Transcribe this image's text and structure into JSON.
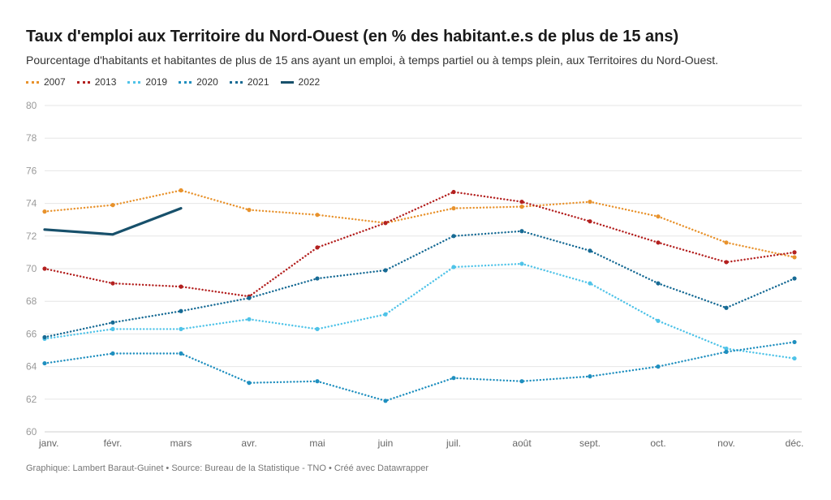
{
  "header": {
    "title": "Taux d'emploi aux Territoire du Nord-Ouest (en % des habitant.e.s de plus de 15 ans)",
    "subtitle": "Pourcentage d'habitants et habitantes de plus de 15 ans ayant un emploi, à temps partiel ou à temps plein, aux Territoires du Nord-Ouest."
  },
  "footer": {
    "credit": "Graphique: Lambert Baraut-Guinet • Source: Bureau de la Statistique - TNO • Créé avec Datawrapper"
  },
  "chart_data": {
    "type": "line",
    "title": "Taux d'emploi aux Territoire du Nord-Ouest (en % des habitant.e.s de plus de 15 ans)",
    "subtitle": "Pourcentage d'habitants et habitantes de plus de 15 ans ayant un emploi, à temps partiel ou à temps plein, aux Territoires du Nord-Ouest.",
    "xlabel": "",
    "ylabel": "",
    "categories": [
      "janv.",
      "févr.",
      "mars",
      "avr.",
      "mai",
      "juin",
      "juil.",
      "août",
      "sept.",
      "oct.",
      "nov.",
      "déc."
    ],
    "ylim": [
      60,
      80
    ],
    "yticks": [
      60,
      62,
      64,
      66,
      68,
      70,
      72,
      74,
      76,
      78,
      80
    ],
    "grid": true,
    "legend_position": "top-left",
    "series": [
      {
        "name": "2007",
        "color": "#e8922c",
        "style": "dotted",
        "values": [
          73.5,
          73.9,
          74.8,
          73.6,
          73.3,
          72.8,
          73.7,
          73.8,
          74.1,
          73.2,
          71.6,
          70.7
        ]
      },
      {
        "name": "2013",
        "color": "#b3201f",
        "style": "dotted",
        "values": [
          70.0,
          69.1,
          68.9,
          68.3,
          71.3,
          72.8,
          74.7,
          74.1,
          72.9,
          71.6,
          70.4,
          71.0
        ]
      },
      {
        "name": "2019",
        "color": "#4fc3e8",
        "style": "dotted",
        "values": [
          65.7,
          66.3,
          66.3,
          66.9,
          66.3,
          67.2,
          70.1,
          70.3,
          69.1,
          66.8,
          65.1,
          64.5
        ]
      },
      {
        "name": "2020",
        "color": "#1f8fbf",
        "style": "dotted",
        "values": [
          64.2,
          64.8,
          64.8,
          63.0,
          63.1,
          61.9,
          63.3,
          63.1,
          63.4,
          64.0,
          64.9,
          65.5
        ]
      },
      {
        "name": "2021",
        "color": "#166a94",
        "style": "dotted",
        "values": [
          65.8,
          66.7,
          67.4,
          68.2,
          69.4,
          69.9,
          72.0,
          72.3,
          71.1,
          69.1,
          67.6,
          69.4
        ]
      },
      {
        "name": "2022",
        "color": "#17506b",
        "style": "solid",
        "values": [
          72.4,
          72.1,
          73.7,
          null,
          null,
          null,
          null,
          null,
          null,
          null,
          null,
          null
        ]
      }
    ]
  }
}
